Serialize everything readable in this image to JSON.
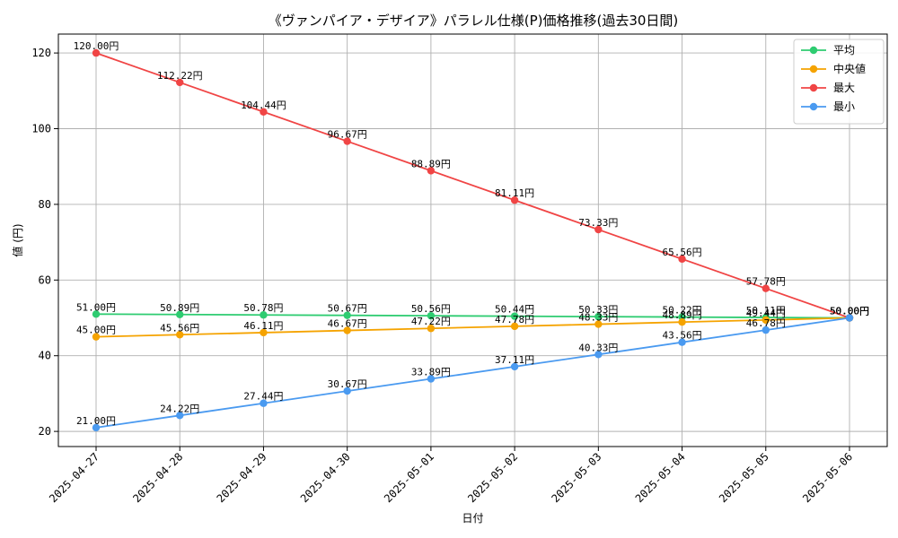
{
  "chart_data": {
    "type": "line",
    "title": "《ヴァンパイア・デザイア》パラレル仕様(P)価格推移(過去30日間)",
    "xlabel": "日付",
    "ylabel": "値 (円)",
    "x": [
      "2025-04-27",
      "2025-04-28",
      "2025-04-29",
      "2025-04-30",
      "2025-05-01",
      "2025-05-02",
      "2025-05-03",
      "2025-05-04",
      "2025-05-05",
      "2025-05-06"
    ],
    "ylim": [
      16,
      125
    ],
    "yticks": [
      20,
      40,
      60,
      80,
      100,
      120
    ],
    "grid": true,
    "legend_position": "top-right",
    "value_suffix": "円",
    "series": [
      {
        "name": "平均",
        "color": "#2ecc71",
        "values": [
          51.0,
          50.89,
          50.78,
          50.67,
          50.56,
          50.44,
          50.33,
          50.22,
          50.11,
          50.0
        ]
      },
      {
        "name": "中央値",
        "color": "#f5a300",
        "values": [
          45.0,
          45.56,
          46.11,
          46.67,
          47.22,
          47.78,
          48.33,
          48.89,
          49.44,
          50.0
        ]
      },
      {
        "name": "最大",
        "color": "#f04545",
        "values": [
          120.0,
          112.22,
          104.44,
          96.67,
          88.89,
          81.11,
          73.33,
          65.56,
          57.78,
          50.0
        ]
      },
      {
        "name": "最小",
        "color": "#4a9af0",
        "values": [
          21.0,
          24.22,
          27.44,
          30.67,
          33.89,
          37.11,
          40.33,
          43.56,
          46.78,
          50.0
        ]
      }
    ]
  }
}
